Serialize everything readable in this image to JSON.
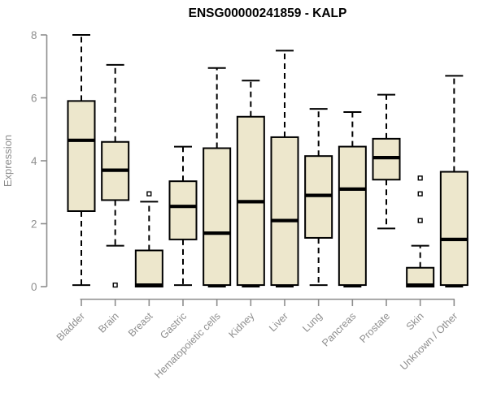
{
  "chart_data": {
    "type": "boxplot",
    "title": "ENSG00000241859 - KALP",
    "ylabel": "Expression",
    "xlabel": "",
    "ylim": [
      0,
      8
    ],
    "yticks": [
      0,
      2,
      4,
      6,
      8
    ],
    "grid": false,
    "legend": "none",
    "categories": [
      "Bladder",
      "Brain",
      "Breast",
      "Gastric",
      "Hematopoietic cells",
      "Kidney",
      "Liver",
      "Lung",
      "Pancreas",
      "Prostate",
      "Skin",
      "Unknown / Other"
    ],
    "boxes": [
      {
        "category": "Bladder",
        "low": 0.05,
        "q1": 2.4,
        "median": 4.65,
        "q3": 5.9,
        "high": 8.0,
        "outliers": []
      },
      {
        "category": "Brain",
        "low": 1.3,
        "q1": 2.75,
        "median": 3.7,
        "q3": 4.6,
        "high": 7.05,
        "outliers": [
          0.05
        ]
      },
      {
        "category": "Breast",
        "low": 0.0,
        "q1": 0.0,
        "median": 0.05,
        "q3": 1.15,
        "high": 2.7,
        "outliers": [
          2.95
        ]
      },
      {
        "category": "Gastric",
        "low": 0.05,
        "q1": 1.5,
        "median": 2.55,
        "q3": 3.35,
        "high": 4.45,
        "outliers": []
      },
      {
        "category": "Hematopoietic cells",
        "low": 0.0,
        "q1": 0.05,
        "median": 1.7,
        "q3": 4.4,
        "high": 6.95,
        "outliers": []
      },
      {
        "category": "Kidney",
        "low": 0.0,
        "q1": 0.05,
        "median": 2.7,
        "q3": 5.4,
        "high": 6.55,
        "outliers": []
      },
      {
        "category": "Liver",
        "low": 0.0,
        "q1": 0.05,
        "median": 2.1,
        "q3": 4.75,
        "high": 7.5,
        "outliers": []
      },
      {
        "category": "Lung",
        "low": 0.05,
        "q1": 1.55,
        "median": 2.9,
        "q3": 4.15,
        "high": 5.65,
        "outliers": []
      },
      {
        "category": "Pancreas",
        "low": 0.0,
        "q1": 0.05,
        "median": 3.1,
        "q3": 4.45,
        "high": 5.55,
        "outliers": []
      },
      {
        "category": "Prostate",
        "low": 1.85,
        "q1": 3.4,
        "median": 4.1,
        "q3": 4.7,
        "high": 6.1,
        "outliers": []
      },
      {
        "category": "Skin",
        "low": 0.0,
        "q1": 0.0,
        "median": 0.05,
        "q3": 0.6,
        "high": 1.3,
        "outliers": [
          2.1,
          2.95,
          3.45
        ]
      },
      {
        "category": "Unknown / Other",
        "low": 0.0,
        "q1": 0.05,
        "median": 1.5,
        "q3": 3.65,
        "high": 6.7,
        "outliers": []
      }
    ],
    "colors": {
      "box_fill": "#EDE7CC",
      "box_border": "#000000",
      "median_line": "#000000",
      "whisker": "#000000",
      "outlier_stroke": "#000000",
      "outlier_fill": "#FFFFFF",
      "axis": "#8E8E8E",
      "tick_label": "#8E8E8E",
      "title": "#000000",
      "background": "#FFFFFF"
    }
  }
}
